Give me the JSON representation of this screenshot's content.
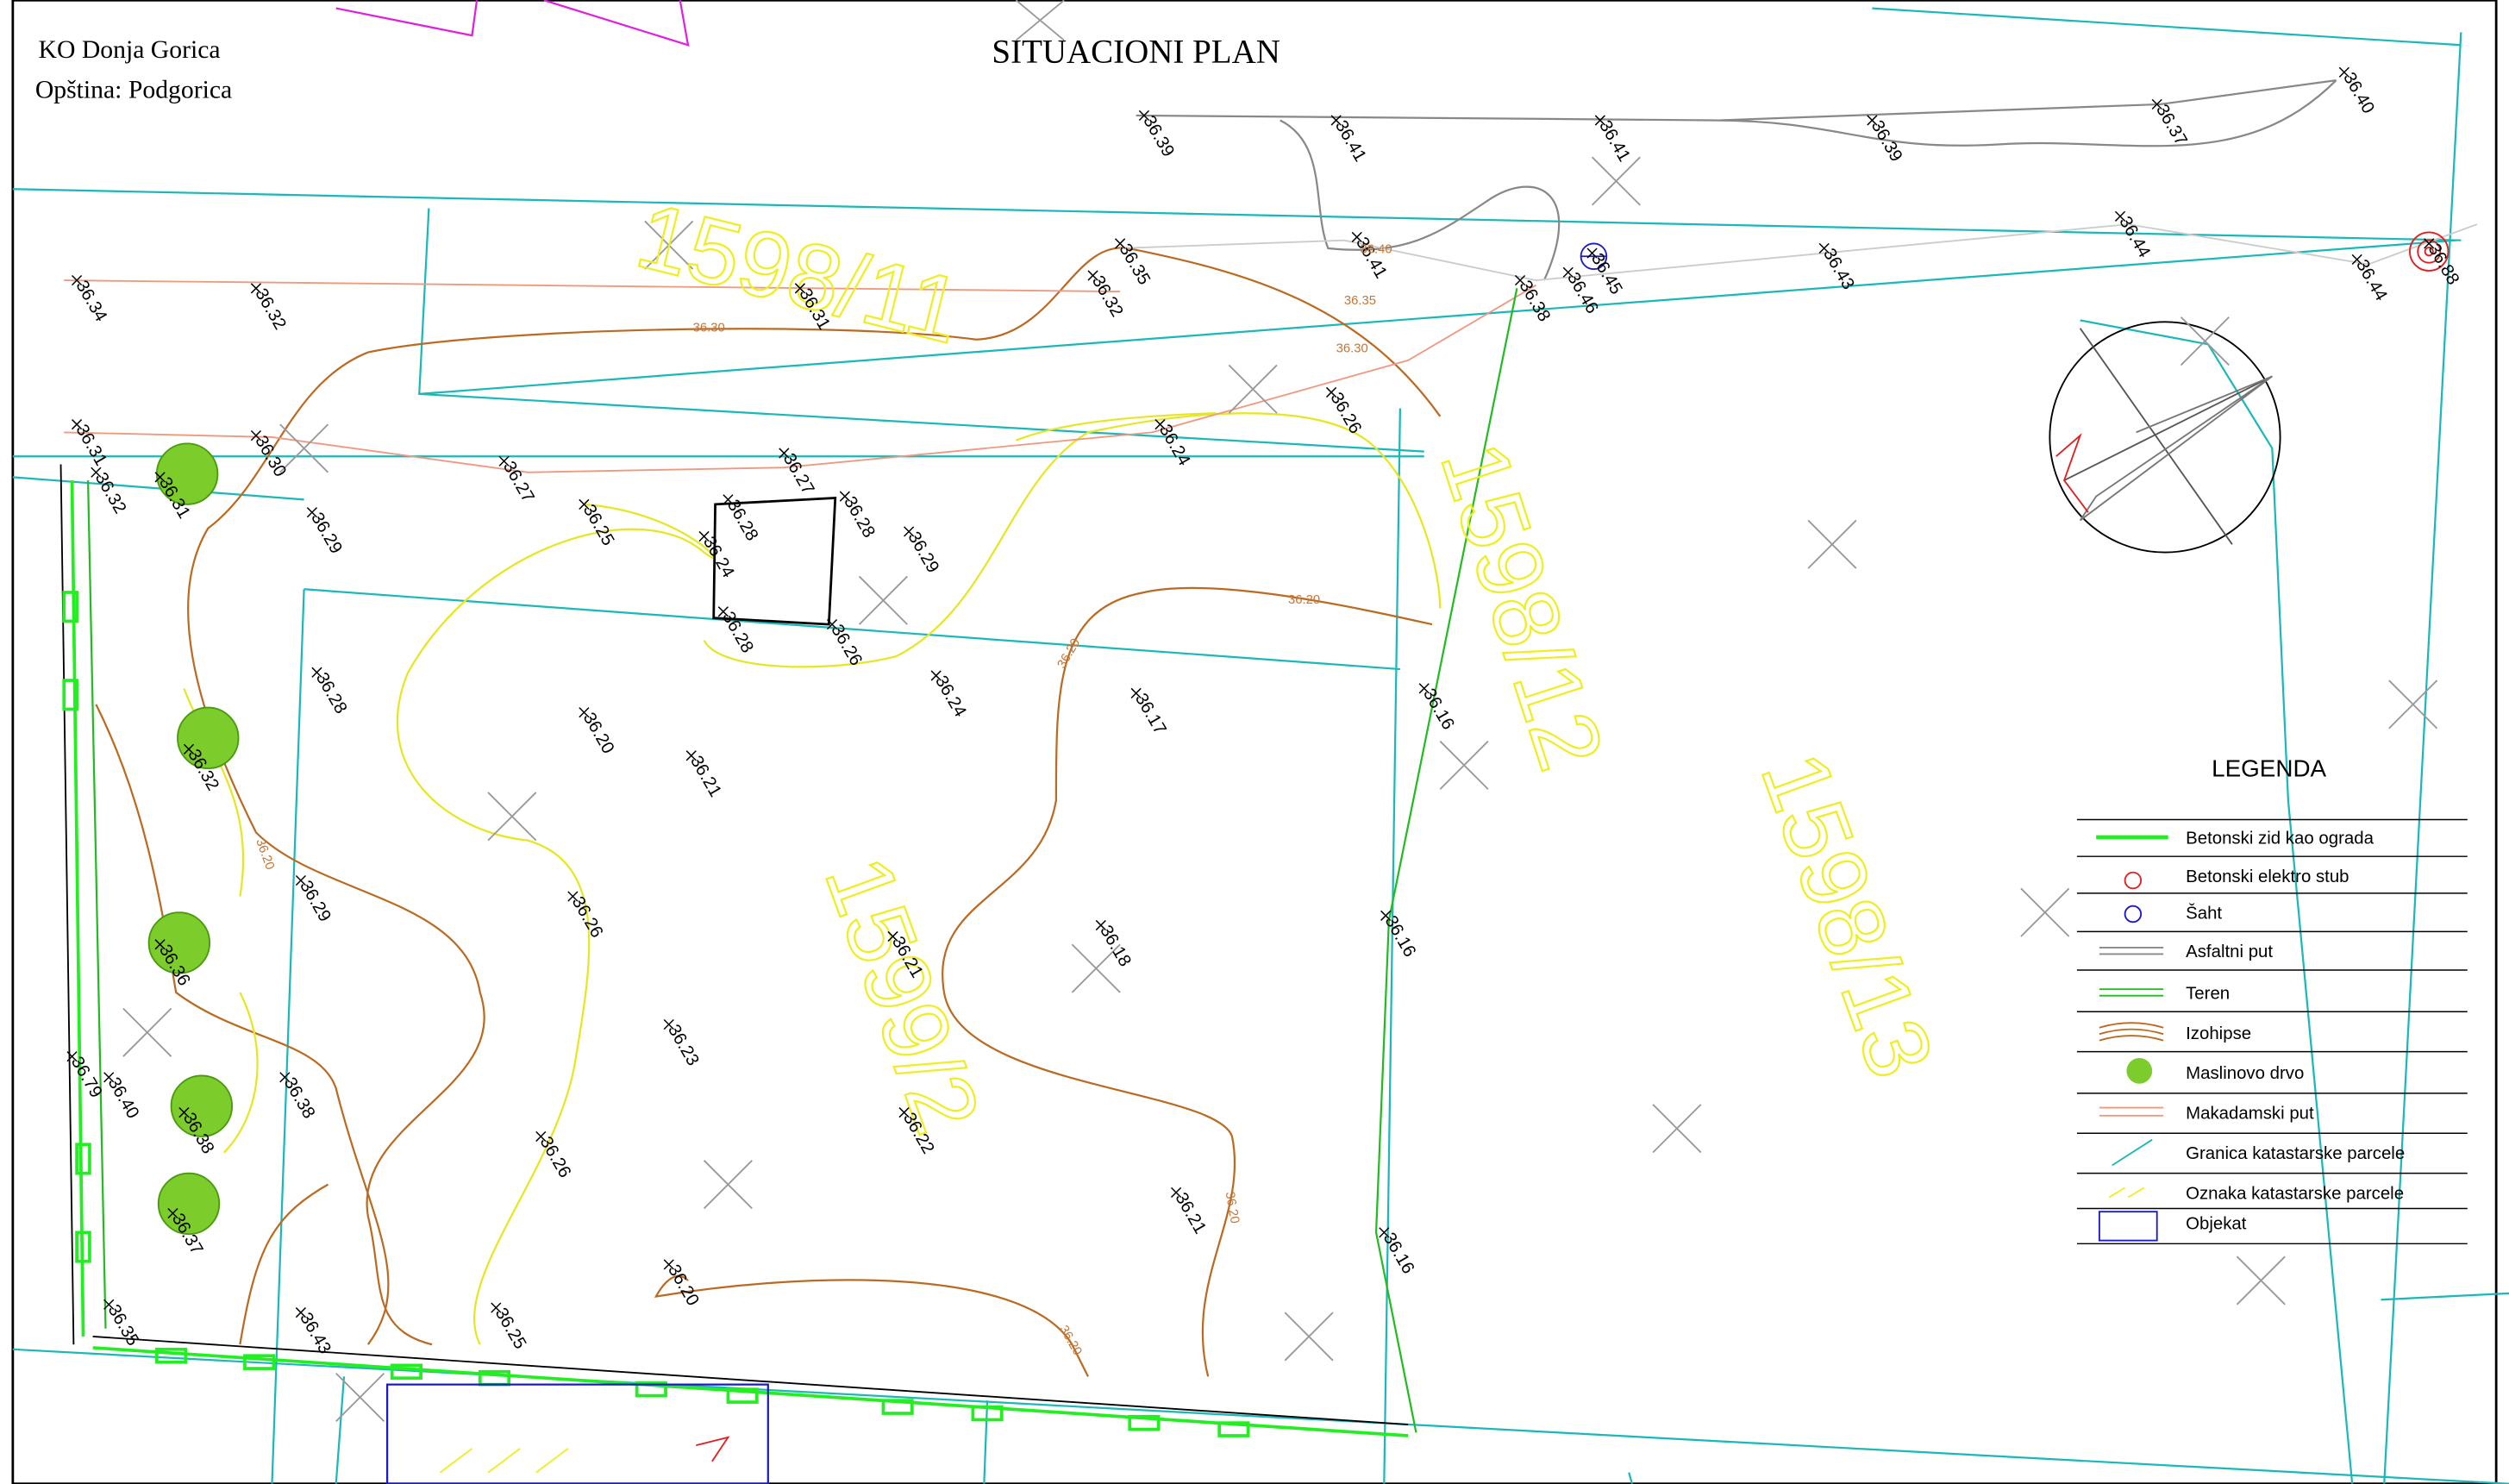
{
  "header": {
    "title": "SITUACIONI PLAN",
    "cadastral_municipality": "KO Donja Gorica",
    "municipality": "Opština: Podgorica"
  },
  "parcels": [
    "1598/11",
    "1598/12",
    "1598/13",
    "1599/2"
  ],
  "spot_heights": [
    "36.39",
    "36.41",
    "36.41",
    "36.39",
    "36.37",
    "36.40",
    "36.34",
    "36.32",
    "36.35",
    "36.32",
    "36.31",
    "36.41",
    "36.46",
    "36.45",
    "36.38",
    "36.43",
    "36.44",
    "36.44",
    "36.88",
    "36.31",
    "36.30",
    "36.27",
    "36.27",
    "36.24",
    "36.26",
    "36.32",
    "36.31",
    "36.29",
    "36.25",
    "36.28",
    "36.24",
    "36.28",
    "36.29",
    "36.28",
    "36.26",
    "36.28",
    "36.20",
    "36.21",
    "36.24",
    "36.17",
    "36.16",
    "36.32",
    "36.29",
    "36.26",
    "36.21",
    "36.18",
    "36.16",
    "36.36",
    "36.23",
    "36.79",
    "36.40",
    "36.38",
    "36.38",
    "36.22",
    "36.26",
    "36.21",
    "36.37",
    "36.16",
    "36.20",
    "36.25",
    "36.35",
    "36.43"
  ],
  "contour_labels": [
    "36.30",
    "36.35",
    "36.30",
    "36.20",
    "36.20",
    "36.20",
    "36.20",
    "36.20",
    "36.40"
  ],
  "legend": {
    "title": "LEGENDA",
    "items": [
      "Betonski zid kao ograda",
      "Betonski elektro stub",
      "Šaht",
      "Asfaltni put",
      "Teren",
      "Izohipse",
      "Maslinovo drvo",
      "Makadamski put",
      "Granica katastarske parcele",
      "Oznaka katastarske parcele",
      "Objekat"
    ]
  }
}
